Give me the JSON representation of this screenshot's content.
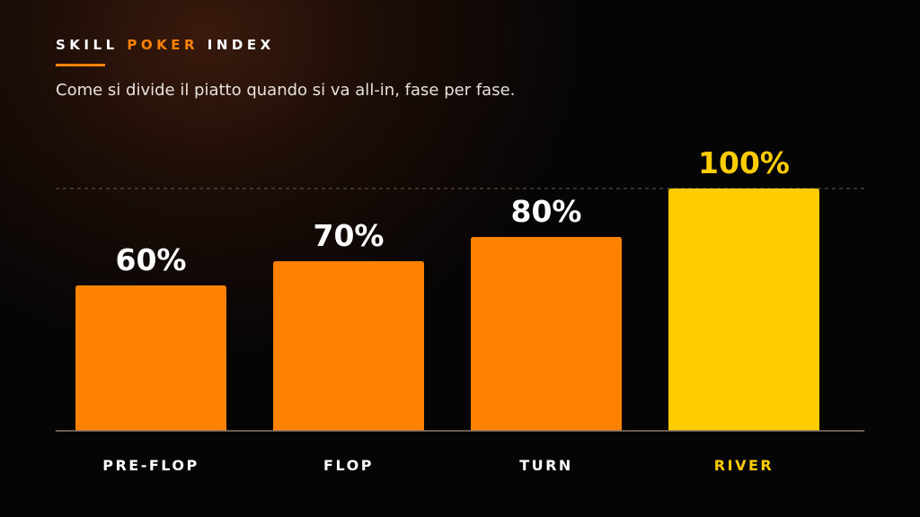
{
  "header": {
    "brand_part1": "SKILL",
    "brand_part2": "POKER",
    "brand_part3": "INDEX",
    "subtitle": "Come si divide il piatto quando si va all-in, fase per fase."
  },
  "colors": {
    "accent": "#ff8200",
    "highlight": "#ffcc00",
    "label": "#ffffff"
  },
  "chart_data": {
    "type": "bar",
    "categories": [
      "PRE-FLOP",
      "FLOP",
      "TURN",
      "RIVER"
    ],
    "values": [
      60,
      70,
      80,
      100
    ],
    "value_labels": [
      "60%",
      "70%",
      "80%",
      "100%"
    ],
    "highlight_category": "RIVER",
    "ylim": [
      0,
      100
    ],
    "reference_line": 100,
    "grid": false
  }
}
